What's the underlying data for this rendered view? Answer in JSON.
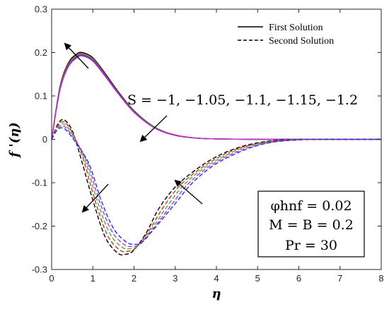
{
  "chart_data": {
    "type": "line",
    "xlabel": "η",
    "ylabel": "f '(η)",
    "xlim": [
      0,
      8
    ],
    "ylim": [
      -0.3,
      0.3
    ],
    "x_ticks": [
      "0",
      "1",
      "2",
      "3",
      "4",
      "5",
      "6",
      "7",
      "8"
    ],
    "y_ticks": [
      "0.3",
      "0.2",
      "0.1",
      "0",
      "-0.1",
      "-0.2",
      "-0.3"
    ],
    "legend": {
      "position": "top-right",
      "entries": [
        {
          "label": "First Solution",
          "style": "solid"
        },
        {
          "label": "Second Solution",
          "style": "dashed"
        }
      ]
    },
    "annotation": "S = −1, −1.05, −1.1, −1.15, −1.2",
    "params": [
      "φhnf = 0.02",
      "M = B = 0.2",
      "Pr = 30"
    ],
    "series": [
      {
        "solution": "first",
        "S": -1,
        "color": "#000000",
        "x": [
          0,
          0.2,
          0.4,
          0.6,
          0.75,
          1.0,
          1.3,
          1.6,
          2.0,
          2.5,
          3.0,
          3.5,
          4,
          5,
          6,
          8
        ],
        "y": [
          0,
          0.12,
          0.175,
          0.196,
          0.2,
          0.188,
          0.152,
          0.112,
          0.066,
          0.028,
          0.01,
          0.003,
          0.001,
          0,
          0,
          0
        ]
      },
      {
        "solution": "first",
        "S": -1.05,
        "color": "#e8282d",
        "x": [
          0,
          0.2,
          0.4,
          0.6,
          0.75,
          1.0,
          1.3,
          1.6,
          2.0,
          2.5,
          3.0,
          3.5,
          4,
          5,
          6,
          8
        ],
        "y": [
          0,
          0.118,
          0.172,
          0.193,
          0.198,
          0.186,
          0.15,
          0.11,
          0.065,
          0.027,
          0.01,
          0.003,
          0.001,
          0,
          0,
          0
        ]
      },
      {
        "solution": "first",
        "S": -1.1,
        "color": "#22cc22",
        "x": [
          0,
          0.2,
          0.4,
          0.6,
          0.75,
          1.0,
          1.3,
          1.6,
          2.0,
          2.5,
          3.0,
          3.5,
          4,
          5,
          6,
          8
        ],
        "y": [
          0,
          0.116,
          0.17,
          0.191,
          0.196,
          0.184,
          0.148,
          0.109,
          0.064,
          0.027,
          0.009,
          0.003,
          0.001,
          0,
          0,
          0
        ]
      },
      {
        "solution": "first",
        "S": -1.15,
        "color": "#2a2ae8",
        "x": [
          0,
          0.2,
          0.4,
          0.6,
          0.75,
          1.0,
          1.3,
          1.6,
          2.0,
          2.5,
          3.0,
          3.5,
          4,
          5,
          6,
          8
        ],
        "y": [
          0,
          0.114,
          0.168,
          0.189,
          0.194,
          0.182,
          0.147,
          0.108,
          0.063,
          0.026,
          0.009,
          0.003,
          0.001,
          0,
          0,
          0
        ]
      },
      {
        "solution": "first",
        "S": -1.2,
        "color": "#d42ad4",
        "x": [
          0,
          0.2,
          0.4,
          0.6,
          0.75,
          1.0,
          1.3,
          1.6,
          2.0,
          2.5,
          3.0,
          3.5,
          4,
          5,
          6,
          8
        ],
        "y": [
          0,
          0.112,
          0.166,
          0.187,
          0.192,
          0.18,
          0.145,
          0.107,
          0.062,
          0.026,
          0.009,
          0.003,
          0.001,
          0,
          0,
          0
        ]
      },
      {
        "solution": "second",
        "S": -1,
        "color": "#000000",
        "x": [
          0,
          0.15,
          0.3,
          0.5,
          0.7,
          1.0,
          1.3,
          1.6,
          1.8,
          2.0,
          2.3,
          2.6,
          3.0,
          3.5,
          4.0,
          4.5,
          5.0,
          5.5,
          6.0,
          7.0,
          8.0
        ],
        "y": [
          0,
          0.035,
          0.045,
          0.02,
          -0.04,
          -0.14,
          -0.225,
          -0.262,
          -0.265,
          -0.255,
          -0.215,
          -0.16,
          -0.11,
          -0.07,
          -0.04,
          -0.02,
          -0.008,
          -0.002,
          0,
          0,
          0
        ]
      },
      {
        "solution": "second",
        "S": -1.05,
        "color": "#e8282d",
        "x": [
          0,
          0.15,
          0.3,
          0.5,
          0.75,
          1.05,
          1.35,
          1.65,
          1.85,
          2.05,
          2.35,
          2.7,
          3.1,
          3.6,
          4.1,
          4.6,
          5.1,
          5.6,
          6.1,
          7.0,
          8.0
        ],
        "y": [
          0,
          0.032,
          0.04,
          0.016,
          -0.04,
          -0.14,
          -0.22,
          -0.255,
          -0.258,
          -0.25,
          -0.212,
          -0.158,
          -0.108,
          -0.068,
          -0.039,
          -0.019,
          -0.008,
          -0.002,
          0,
          0,
          0
        ]
      },
      {
        "solution": "second",
        "S": -1.1,
        "color": "#22cc22",
        "x": [
          0,
          0.15,
          0.3,
          0.5,
          0.8,
          1.1,
          1.4,
          1.7,
          1.9,
          2.1,
          2.4,
          2.8,
          3.2,
          3.7,
          4.2,
          4.7,
          5.2,
          5.7,
          6.2,
          7.0,
          8.0
        ],
        "y": [
          0,
          0.029,
          0.035,
          0.012,
          -0.045,
          -0.14,
          -0.215,
          -0.248,
          -0.252,
          -0.245,
          -0.21,
          -0.155,
          -0.106,
          -0.066,
          -0.038,
          -0.018,
          -0.007,
          -0.002,
          0,
          0,
          0
        ]
      },
      {
        "solution": "second",
        "S": -1.15,
        "color": "#d42ad4",
        "x": [
          0,
          0.15,
          0.3,
          0.5,
          0.85,
          1.15,
          1.45,
          1.75,
          1.95,
          2.15,
          2.45,
          2.9,
          3.3,
          3.8,
          4.3,
          4.8,
          5.3,
          5.8,
          6.3,
          7.0,
          8.0
        ],
        "y": [
          0,
          0.026,
          0.03,
          0.008,
          -0.05,
          -0.14,
          -0.21,
          -0.242,
          -0.247,
          -0.241,
          -0.208,
          -0.152,
          -0.104,
          -0.064,
          -0.037,
          -0.018,
          -0.007,
          -0.002,
          0,
          0,
          0
        ]
      },
      {
        "solution": "second",
        "S": -1.2,
        "color": "#2a2ae8",
        "x": [
          0,
          0.15,
          0.3,
          0.5,
          0.9,
          1.2,
          1.5,
          1.8,
          2.0,
          2.2,
          2.5,
          3.0,
          3.4,
          3.9,
          4.4,
          4.9,
          5.4,
          5.9,
          6.4,
          7.0,
          8.0
        ],
        "y": [
          0,
          0.023,
          0.025,
          0.004,
          -0.055,
          -0.14,
          -0.205,
          -0.236,
          -0.242,
          -0.237,
          -0.205,
          -0.148,
          -0.102,
          -0.062,
          -0.036,
          -0.017,
          -0.006,
          -0.002,
          0,
          0,
          0
        ]
      }
    ]
  }
}
